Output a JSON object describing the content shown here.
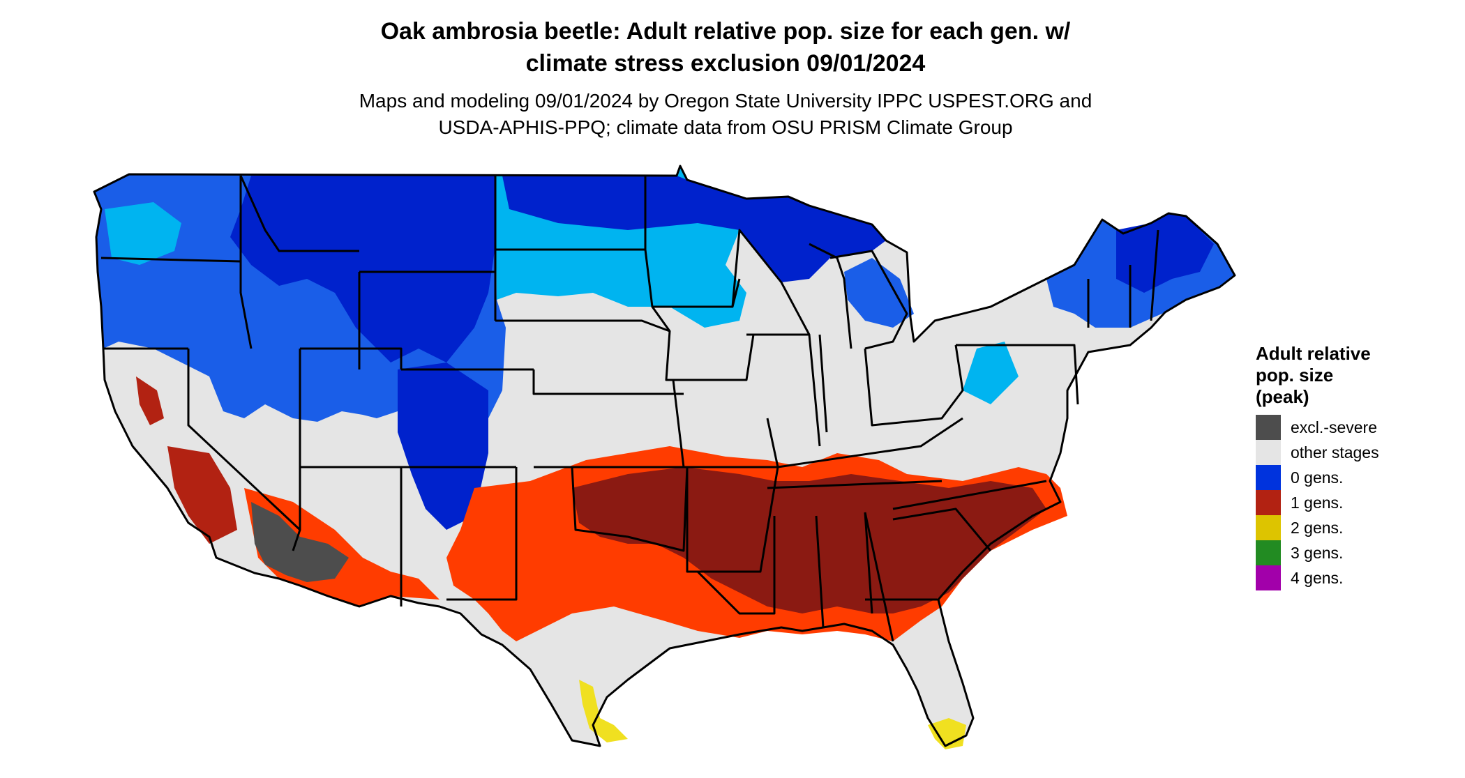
{
  "header": {
    "title_line1": "Oak ambrosia beetle: Adult relative pop. size for each gen. w/",
    "title_line2": "climate stress exclusion 09/01/2024",
    "subtitle_line1": "Maps and modeling 09/01/2024 by Oregon State University IPPC USPEST.ORG and",
    "subtitle_line2": "USDA-APHIS-PPQ; climate data from OSU PRISM Climate Group"
  },
  "legend": {
    "title_line1": "Adult relative",
    "title_line2": "pop. size",
    "title_line3": "(peak)",
    "items": [
      {
        "label": "excl.-severe",
        "color": "#4d4d4d"
      },
      {
        "label": "other stages",
        "color": "#e5e5e5"
      },
      {
        "label": "0 gens.",
        "color": "#0033dd"
      },
      {
        "label": "1 gens.",
        "color": "#b22212"
      },
      {
        "label": "2 gens.",
        "color": "#ddc400"
      },
      {
        "label": "3 gens.",
        "color": "#228b22"
      },
      {
        "label": "4 gens.",
        "color": "#a200aa"
      }
    ]
  },
  "map": {
    "colors": {
      "outline": "#000000",
      "other_stages": "#e5e5e5",
      "zero_gens_dark": "#0022cc",
      "zero_gens_mid": "#1a5ee8",
      "zero_gens_light": "#00b4f0",
      "one_gens_dark": "#8b1a12",
      "one_gens_mid": "#b22212",
      "one_gens_light": "#ff3c00",
      "two_gens": "#f0e020",
      "excl_severe": "#4d4d4d"
    }
  }
}
